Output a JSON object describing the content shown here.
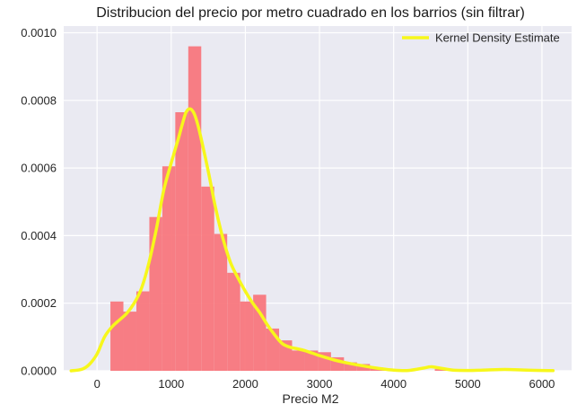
{
  "chart_data": {
    "type": "histogram",
    "title": "Distribucion del precio por metro cuadrado en los barrios (sin filtrar)",
    "xlabel": "Precio M2",
    "ylabel": "",
    "xlim": [
      -450,
      6400
    ],
    "ylim": [
      0,
      0.00102
    ],
    "x_ticks": [
      0,
      1000,
      2000,
      3000,
      4000,
      5000,
      6000
    ],
    "x_tick_labels": [
      "0",
      "1000",
      "2000",
      "3000",
      "4000",
      "5000",
      "6000"
    ],
    "y_ticks": [
      0,
      0.0002,
      0.0004,
      0.0006,
      0.0008,
      0.001
    ],
    "y_tick_labels": [
      "0.0000",
      "0.0002",
      "0.0004",
      "0.0006",
      "0.0008",
      "0.0010"
    ],
    "grid": true,
    "legend_position": "top-right",
    "histogram": {
      "color": "#f8777d",
      "bins": [
        {
          "x0": 180,
          "x1": 355,
          "value": 0.000205
        },
        {
          "x0": 355,
          "x1": 530,
          "value": 0.000175
        },
        {
          "x0": 530,
          "x1": 705,
          "value": 0.000235
        },
        {
          "x0": 705,
          "x1": 880,
          "value": 0.000455
        },
        {
          "x0": 880,
          "x1": 1055,
          "value": 0.000605
        },
        {
          "x0": 1055,
          "x1": 1230,
          "value": 0.000765
        },
        {
          "x0": 1230,
          "x1": 1405,
          "value": 0.00096
        },
        {
          "x0": 1405,
          "x1": 1580,
          "value": 0.000545
        },
        {
          "x0": 1580,
          "x1": 1755,
          "value": 0.000405
        },
        {
          "x0": 1755,
          "x1": 1930,
          "value": 0.00029
        },
        {
          "x0": 1930,
          "x1": 2105,
          "value": 0.000205
        },
        {
          "x0": 2105,
          "x1": 2280,
          "value": 0.000225
        },
        {
          "x0": 2280,
          "x1": 2455,
          "value": 0.000125
        },
        {
          "x0": 2455,
          "x1": 2630,
          "value": 9e-05
        },
        {
          "x0": 2630,
          "x1": 2805,
          "value": 6e-05
        },
        {
          "x0": 2805,
          "x1": 2980,
          "value": 6e-05
        },
        {
          "x0": 2980,
          "x1": 3155,
          "value": 5.5e-05
        },
        {
          "x0": 3155,
          "x1": 3330,
          "value": 4e-05
        },
        {
          "x0": 3330,
          "x1": 3505,
          "value": 2.5e-05
        },
        {
          "x0": 3505,
          "x1": 3680,
          "value": 2e-05
        },
        {
          "x0": 3680,
          "x1": 3855,
          "value": 1e-05
        },
        {
          "x0": 3855,
          "x1": 4030,
          "value": 5e-06
        },
        {
          "x0": 4555,
          "x1": 4730,
          "value": 5e-06
        },
        {
          "x0": 5430,
          "x1": 5605,
          "value": 5e-06
        }
      ]
    },
    "series": [
      {
        "name": "Kernel Density Estimate",
        "type": "line",
        "color": "#f7f71b",
        "x": [
          -350,
          -200,
          -100,
          0,
          100,
          200,
          300,
          400,
          500,
          600,
          700,
          800,
          900,
          1000,
          1100,
          1150,
          1200,
          1250,
          1300,
          1350,
          1400,
          1500,
          1600,
          1700,
          1800,
          1900,
          2000,
          2100,
          2200,
          2300,
          2400,
          2500,
          2600,
          2700,
          2800,
          3000,
          3200,
          3400,
          3600,
          3800,
          4000,
          4200,
          4400,
          4500,
          4600,
          4800,
          5000,
          5200,
          5500,
          5800,
          6150
        ],
        "y": [
          0,
          5e-06,
          2e-05,
          5e-05,
          0.0001,
          0.00013,
          0.00015,
          0.00017,
          0.0002,
          0.000245,
          0.00032,
          0.00042,
          0.000535,
          0.000615,
          0.00069,
          0.00073,
          0.000765,
          0.000775,
          0.000765,
          0.000735,
          0.00069,
          0.00059,
          0.00048,
          0.00039,
          0.00032,
          0.000275,
          0.000235,
          0.0002,
          0.00017,
          0.000135,
          0.000105,
          8e-05,
          7e-05,
          6.5e-05,
          6e-05,
          4.5e-05,
          3.2e-05,
          2.2e-05,
          1.4e-05,
          7e-06,
          2e-06,
          1e-06,
          8e-06,
          1.2e-05,
          9e-06,
          2e-06,
          1e-06,
          2e-06,
          4e-06,
          2e-06,
          5e-07
        ]
      }
    ]
  }
}
